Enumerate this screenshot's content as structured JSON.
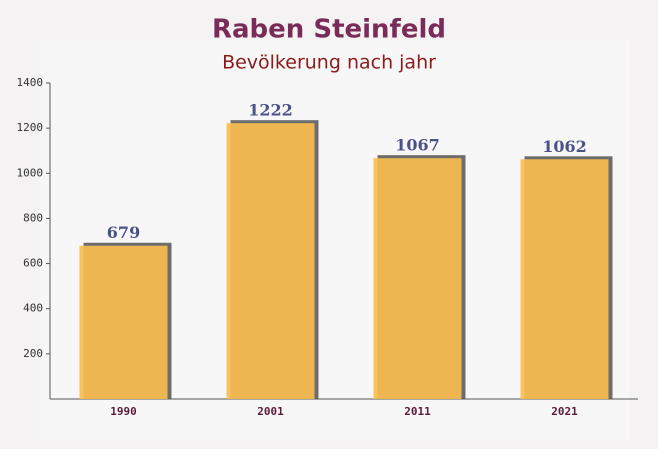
{
  "chart_data": {
    "type": "bar",
    "title": "Raben Steinfeld",
    "subtitle": "Bevölkerung nach jahr",
    "categories": [
      "1990",
      "2001",
      "2011",
      "2021"
    ],
    "values": [
      679,
      1222,
      1067,
      1062
    ],
    "color": "#f9bd4e",
    "ylim": [
      0,
      1400
    ],
    "yticks": [
      200,
      400,
      600,
      800,
      1000,
      1200,
      1400
    ]
  }
}
